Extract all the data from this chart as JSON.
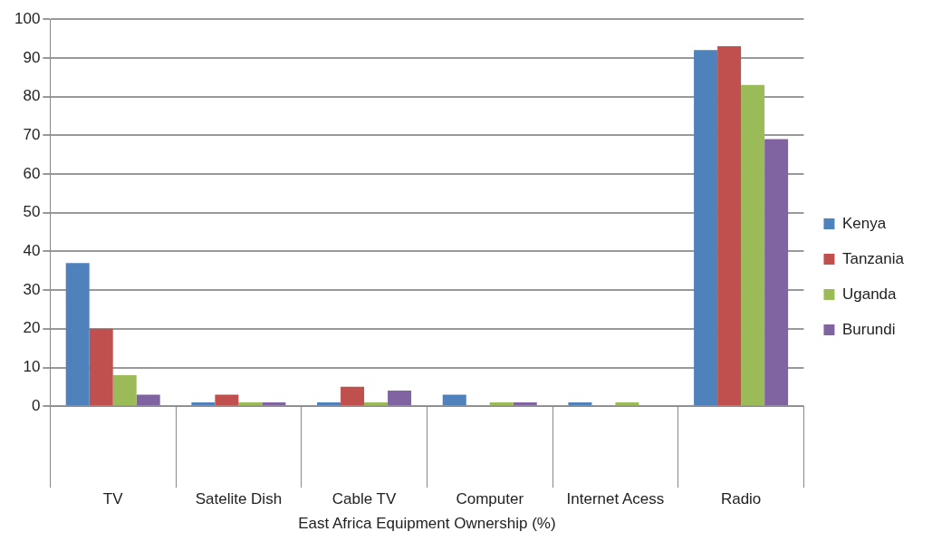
{
  "chart_data": {
    "type": "bar",
    "xlabel": "East Africa Equipment Ownership (%)",
    "categories": [
      "TV",
      "Satelite Dish",
      "Cable TV",
      "Computer",
      "Internet Acess",
      "Radio"
    ],
    "series": [
      {
        "name": "Kenya",
        "color": "#4f81bd",
        "values": [
          37,
          1,
          1,
          3,
          1,
          92
        ]
      },
      {
        "name": "Tanzania",
        "color": "#c0504d",
        "values": [
          20,
          3,
          5,
          0,
          0,
          93
        ]
      },
      {
        "name": "Uganda",
        "color": "#9bbb59",
        "values": [
          8,
          1,
          1,
          1,
          1,
          83
        ]
      },
      {
        "name": "Burundi",
        "color": "#8064a2",
        "values": [
          3,
          1,
          4,
          1,
          0,
          69
        ]
      }
    ],
    "ylim": [
      0,
      100
    ],
    "yticks": [
      0,
      10,
      20,
      30,
      40,
      50,
      60,
      70,
      80,
      90,
      100
    ],
    "grid": "y",
    "legend": "right"
  }
}
